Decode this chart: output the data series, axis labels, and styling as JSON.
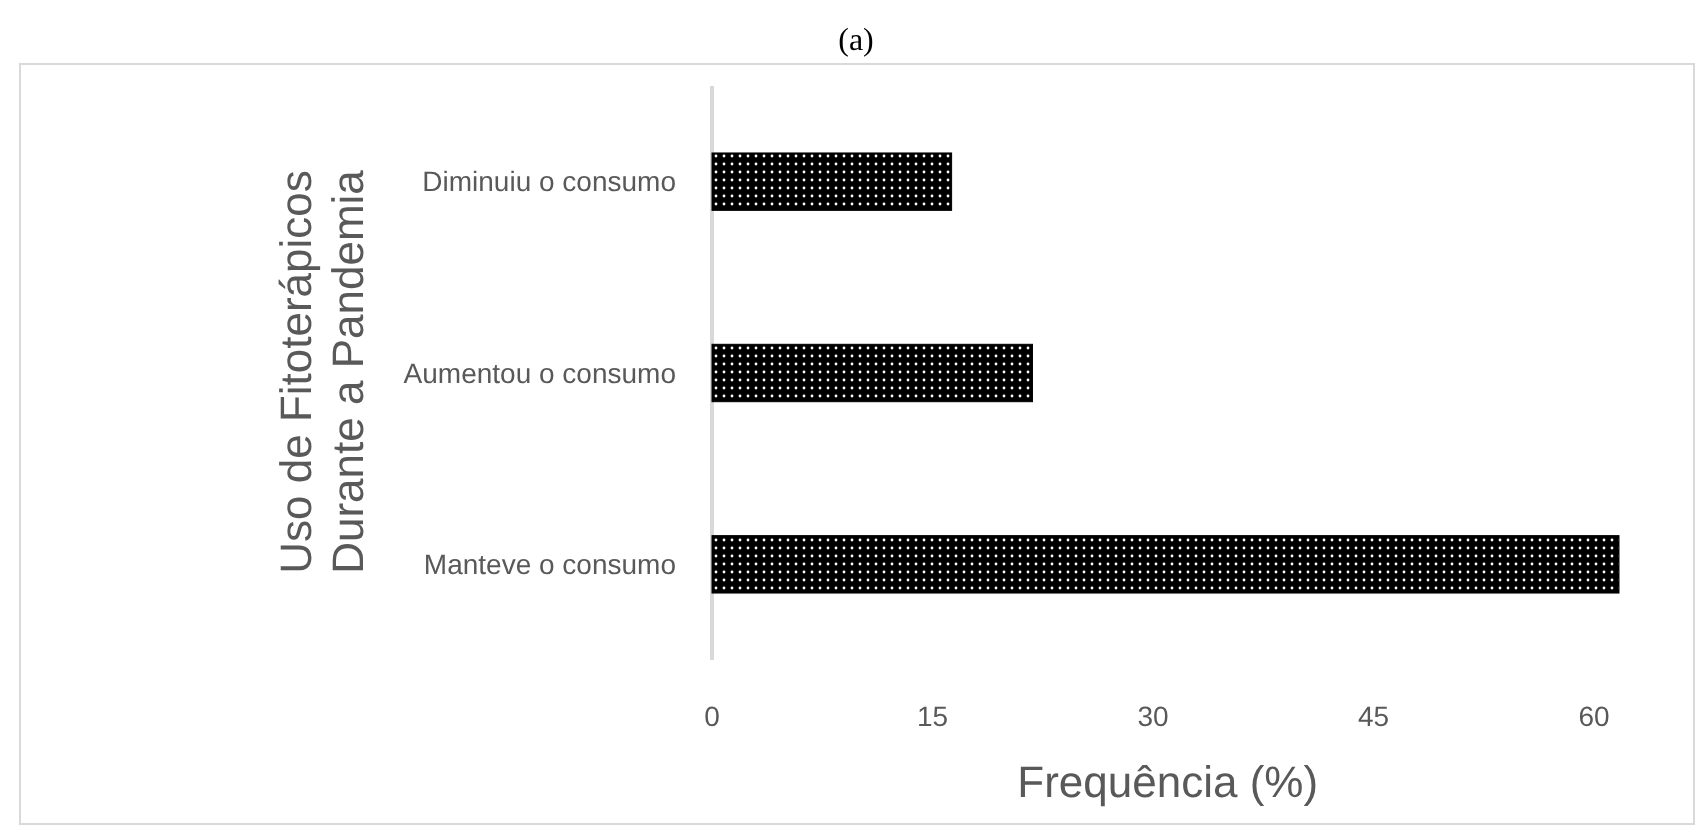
{
  "chart_data": {
    "type": "bar",
    "orientation": "horizontal",
    "title": "(a)",
    "xlabel": "Frequência (%)",
    "ylabel": "Uso de Fitoterápicos\nDurante a Pandemia",
    "categories": [
      "Diminuiu o consumo",
      "Aumentou o consumo",
      "Manteve o consumo"
    ],
    "values": [
      16.3,
      21.8,
      61.7
    ],
    "color": "#000000",
    "xlim": [
      0,
      62
    ],
    "xticks": [
      0,
      15,
      30,
      45,
      60
    ],
    "grid": false
  }
}
